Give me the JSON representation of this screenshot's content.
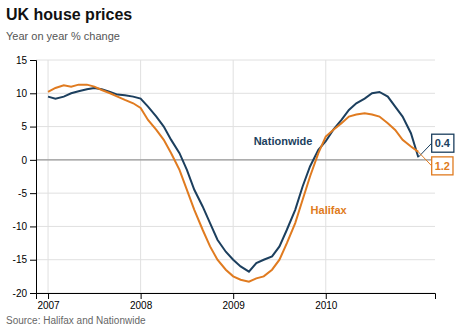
{
  "chart_data": {
    "type": "line",
    "title": "UK house prices",
    "subtitle": "Year on year % change",
    "source": "Source: Halifax and Nationwide",
    "x": [
      2007.0,
      2007.08,
      2007.17,
      2007.25,
      2007.33,
      2007.42,
      2007.5,
      2007.58,
      2007.67,
      2007.75,
      2007.83,
      2007.92,
      2008.0,
      2008.08,
      2008.17,
      2008.25,
      2008.33,
      2008.42,
      2008.5,
      2008.58,
      2008.67,
      2008.75,
      2008.83,
      2008.92,
      2009.0,
      2009.08,
      2009.17,
      2009.25,
      2009.33,
      2009.42,
      2009.5,
      2009.58,
      2009.67,
      2009.75,
      2009.83,
      2009.92,
      2010.0,
      2010.08,
      2010.17,
      2010.25,
      2010.33,
      2010.42,
      2010.5,
      2010.58,
      2010.67,
      2010.75,
      2010.83,
      2010.92,
      2011.0
    ],
    "series": [
      {
        "name": "Nationwide",
        "color": "#1c3f5e",
        "values": [
          9.5,
          9.2,
          9.5,
          10.0,
          10.3,
          10.6,
          10.8,
          10.6,
          10.2,
          9.8,
          9.7,
          9.5,
          9.2,
          8.0,
          6.5,
          5.0,
          3.0,
          1.0,
          -1.5,
          -4.5,
          -7.0,
          -9.5,
          -12.0,
          -13.8,
          -15.0,
          -16.0,
          -16.8,
          -15.5,
          -15.0,
          -14.5,
          -13.0,
          -10.5,
          -7.5,
          -4.0,
          -1.0,
          1.5,
          2.8,
          4.5,
          6.0,
          7.5,
          8.5,
          9.2,
          10.0,
          10.2,
          9.5,
          8.0,
          6.5,
          4.0,
          0.4
        ]
      },
      {
        "name": "Halifax",
        "color": "#e07b20",
        "values": [
          10.2,
          10.8,
          11.2,
          11.0,
          11.3,
          11.3,
          11.0,
          10.5,
          10.0,
          9.5,
          9.0,
          8.5,
          7.8,
          6.0,
          4.5,
          3.0,
          1.0,
          -1.5,
          -4.5,
          -7.5,
          -10.5,
          -13.0,
          -15.0,
          -16.5,
          -17.5,
          -18.0,
          -18.3,
          -17.8,
          -17.5,
          -16.5,
          -15.0,
          -12.5,
          -9.5,
          -6.0,
          -2.5,
          1.0,
          3.5,
          4.5,
          5.5,
          6.5,
          6.8,
          7.0,
          6.8,
          6.5,
          5.5,
          4.5,
          3.0,
          2.0,
          1.2
        ]
      }
    ],
    "annotations": [
      {
        "text": "0.4",
        "x": 2011.0,
        "y": 0.4,
        "color": "#1c3f5e"
      },
      {
        "text": "1.2",
        "x": 2011.0,
        "y": 1.2,
        "color": "#e07b20"
      }
    ],
    "reference_line": {
      "y": 0,
      "color": "#999999"
    },
    "xlim": [
      2006.87,
      2011.18
    ],
    "xticks": [
      2007,
      2008,
      2009,
      2010
    ],
    "ylim": [
      -20,
      15
    ],
    "yticks": [
      -20,
      -15,
      -10,
      -5,
      0,
      5,
      10,
      15
    ],
    "grid": true
  }
}
